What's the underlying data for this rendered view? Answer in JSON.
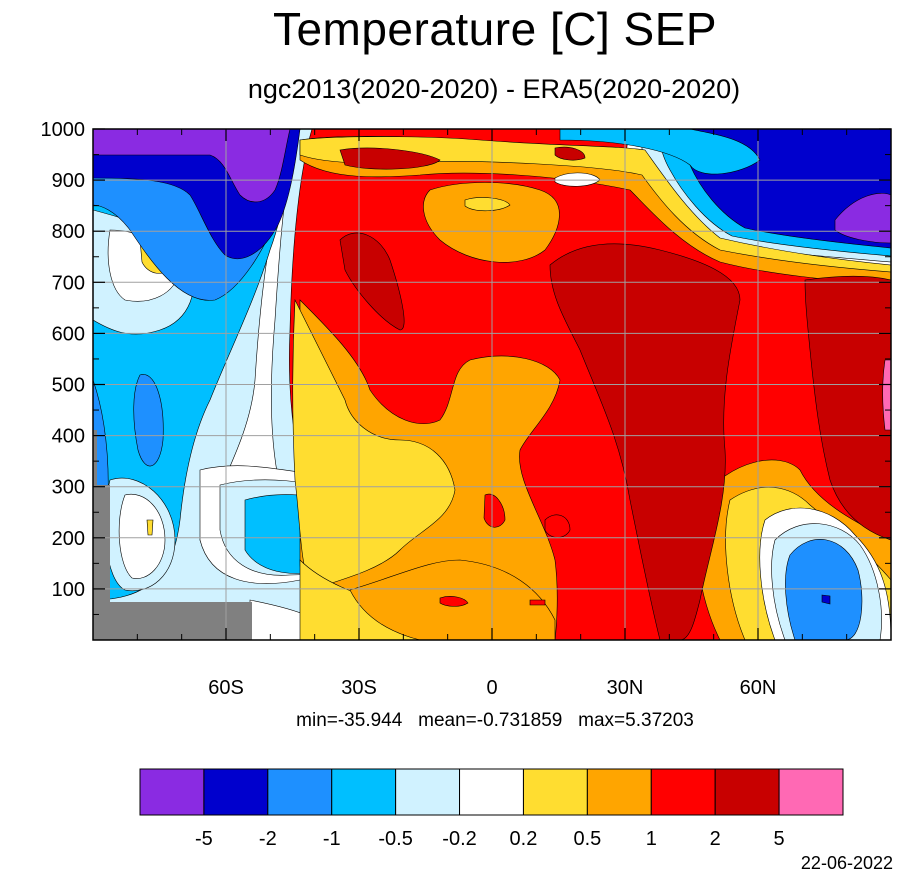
{
  "title": "Temperature [C] SEP",
  "subtitle": "ngc2013(2020-2020) - ERA5(2020-2020)",
  "stats": "min=-35.944   mean=-0.731859   max=5.37203",
  "date": "22-06-2022",
  "chart_data": {
    "type": "contour",
    "x_axis": {
      "range": [
        -90,
        90
      ],
      "ticks": [
        {
          "value": -60,
          "label": "60S"
        },
        {
          "value": -30,
          "label": "30S"
        },
        {
          "value": 0,
          "label": "0"
        },
        {
          "value": 30,
          "label": "30N"
        },
        {
          "value": 60,
          "label": "60N"
        }
      ]
    },
    "y_axis": {
      "range": [
        1000,
        0
      ],
      "ticks": [
        100,
        200,
        300,
        400,
        500,
        600,
        700,
        800,
        900,
        1000
      ]
    },
    "grid": true,
    "colorbar": {
      "colors": [
        "#8a2be2",
        "#0000cd",
        "#1e90ff",
        "#00bfff",
        "#d0f2ff",
        "#ffffff",
        "#ffdd30",
        "#ffa500",
        "#ff0000",
        "#c80000",
        "#ff69b4"
      ],
      "labels": [
        "-5",
        "-2",
        "-1",
        "-0.5",
        "-0.2",
        "0.2",
        "0.5",
        "1",
        "2",
        "5"
      ]
    },
    "missing_color": "#808080"
  }
}
